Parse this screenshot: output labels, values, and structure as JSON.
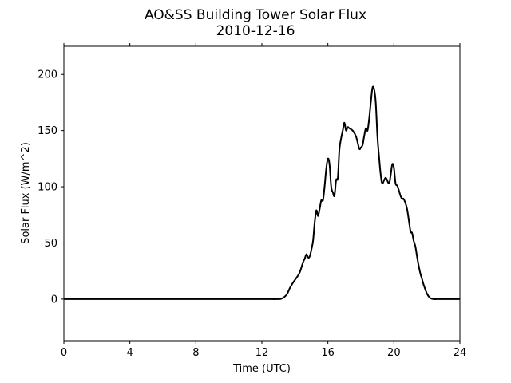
{
  "chart_data": {
    "type": "line",
    "title": "AO&SS Building Tower Solar Flux",
    "subtitle": "2010-12-16",
    "xlabel": "Time (UTC)",
    "ylabel": "Solar Flux (W/m^2)",
    "xlim": [
      0,
      24
    ],
    "ylim": [
      -37,
      225
    ],
    "xticks": [
      0,
      4,
      8,
      12,
      16,
      20,
      24
    ],
    "yticks": [
      0,
      50,
      100,
      150,
      200
    ],
    "grid": false,
    "legend": "none",
    "line_color": "#000000",
    "series": [
      {
        "x": [
          0,
          4,
          8,
          12,
          12.9,
          13.2,
          13.5,
          13.7,
          13.9,
          14.1,
          14.3,
          14.5,
          14.6,
          14.7,
          14.8,
          14.9,
          15.0,
          15.1,
          15.2,
          15.3,
          15.4,
          15.5,
          15.6,
          15.7,
          15.8,
          15.9,
          16.0,
          16.1,
          16.2,
          16.3,
          16.4,
          16.5,
          16.6,
          16.7,
          16.8,
          16.9,
          17.0,
          17.1,
          17.2,
          17.3,
          17.5,
          17.7,
          17.9,
          18.0,
          18.1,
          18.2,
          18.3,
          18.4,
          18.5,
          18.6,
          18.7,
          18.8,
          18.9,
          19.0,
          19.1,
          19.2,
          19.3,
          19.5,
          19.7,
          19.8,
          19.9,
          20.0,
          20.1,
          20.2,
          20.3,
          20.4,
          20.5,
          20.6,
          20.8,
          21.0,
          21.1,
          21.2,
          21.3,
          21.4,
          21.5,
          21.6,
          21.7,
          21.8,
          22.0,
          22.2,
          22.4,
          22.6,
          22.8,
          23.0,
          24
        ],
        "y": [
          0,
          0,
          0,
          0,
          0,
          0.5,
          4,
          10,
          15,
          19,
          24,
          33,
          36,
          40,
          37,
          38,
          44,
          52,
          68,
          79,
          74,
          80,
          88,
          88,
          100,
          116,
          125,
          120,
          100,
          95,
          92,
          106,
          108,
          133,
          143,
          150,
          157,
          150,
          153,
          152,
          150,
          145,
          134,
          135,
          137,
          145,
          152,
          150,
          160,
          175,
          188,
          187,
          175,
          145,
          127,
          111,
          103,
          108,
          103,
          110,
          120,
          117,
          103,
          101,
          97,
          92,
          89,
          89,
          80,
          61,
          59,
          52,
          47,
          38,
          30,
          23,
          18,
          13,
          5,
          1,
          0,
          0,
          0,
          0,
          0
        ]
      }
    ]
  }
}
